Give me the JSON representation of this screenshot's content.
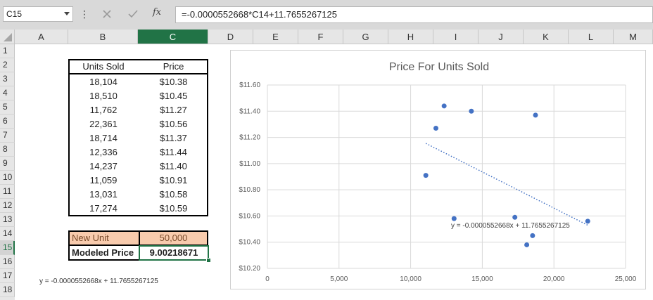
{
  "formula_bar": {
    "name_box": "C15",
    "fx_label": "fx",
    "formula": "=-0.0000552668*C14+11.7655267125"
  },
  "columns": [
    "A",
    "B",
    "C",
    "D",
    "E",
    "F",
    "G",
    "H",
    "I",
    "J",
    "K",
    "L",
    "M"
  ],
  "selected_column": "C",
  "rows": [
    "1",
    "2",
    "3",
    "4",
    "5",
    "6",
    "7",
    "8",
    "9",
    "10",
    "11",
    "12",
    "13",
    "14",
    "15",
    "16",
    "17",
    "18"
  ],
  "selected_row": "15",
  "table": {
    "headers": [
      "Units Sold",
      "Price"
    ],
    "rows": [
      [
        "18,104",
        "$10.38"
      ],
      [
        "18,510",
        "$10.45"
      ],
      [
        "11,762",
        "$11.27"
      ],
      [
        "22,361",
        "$10.56"
      ],
      [
        "18,714",
        "$11.37"
      ],
      [
        "12,336",
        "$11.44"
      ],
      [
        "14,237",
        "$11.40"
      ],
      [
        "11,059",
        "$10.91"
      ],
      [
        "13,031",
        "$10.58"
      ],
      [
        "17,274",
        "$10.59"
      ]
    ]
  },
  "new_unit": {
    "label": "New Unit",
    "value": "50,000"
  },
  "modeled_price": {
    "label": "Modeled Price",
    "value": "9.00218671"
  },
  "equation_cell": "y = -0.0000552668x + 11.7655267125",
  "colors": {
    "accent": "#217346",
    "marker": "#4472c4",
    "highlight": "#f8cbad"
  },
  "chart_data": {
    "type": "scatter",
    "title": "Price For Units Sold",
    "x": [
      18104,
      18510,
      11762,
      22361,
      18714,
      12336,
      14237,
      11059,
      13031,
      17274
    ],
    "y": [
      10.38,
      10.45,
      11.27,
      10.56,
      11.37,
      11.44,
      11.4,
      10.91,
      10.58,
      10.59
    ],
    "xlim": [
      0,
      25000
    ],
    "ylim": [
      10.2,
      11.6
    ],
    "x_ticks": [
      0,
      5000,
      10000,
      15000,
      20000,
      25000
    ],
    "x_tick_labels": [
      "0",
      "5,000",
      "10,000",
      "15,000",
      "20,000",
      "25,000"
    ],
    "y_ticks": [
      10.2,
      10.4,
      10.6,
      10.8,
      11.0,
      11.2,
      11.4,
      11.6
    ],
    "y_tick_labels": [
      "$10.20",
      "$10.40",
      "$10.60",
      "$10.80",
      "$11.00",
      "$11.20",
      "$11.40",
      "$11.60"
    ],
    "trendline": {
      "slope": -5.52668e-05,
      "intercept": 11.7655267125,
      "x_range": [
        11059,
        22361
      ],
      "style": "dotted"
    },
    "trendline_label": "y = -0.0000552668x + 11.7655267125",
    "grid": true,
    "legend": "none"
  }
}
